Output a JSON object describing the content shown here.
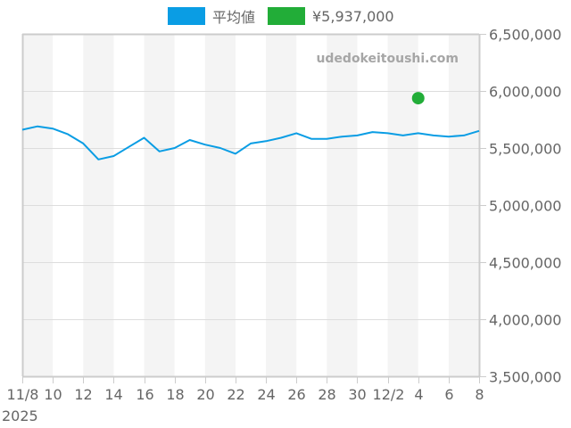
{
  "legend": {
    "series_label": "平均値",
    "series_color": "#0a9de4",
    "point_label": "¥5,937,000",
    "point_color": "#22ad38"
  },
  "watermark": "udedokeitoushi.com",
  "colors": {
    "line": "#0a9de4",
    "point": "#22ad38",
    "band": "#f4f4f4",
    "grid": "#dddddd",
    "axis": "#cccccc",
    "text": "#666666"
  },
  "chart_data": {
    "type": "line",
    "title": "",
    "xlabel": "",
    "ylabel": "",
    "ylim": [
      3500000,
      6500000
    ],
    "grid": true,
    "legend_position": "top",
    "y_ticks": [
      "6,500,000",
      "6,000,000",
      "5,500,000",
      "5,000,000",
      "4,500,000",
      "4,000,000",
      "3,500,000"
    ],
    "x_ticks": [
      "11/8",
      "10",
      "12",
      "14",
      "16",
      "18",
      "20",
      "22",
      "24",
      "26",
      "28",
      "30",
      "12/2",
      "4",
      "6",
      "8"
    ],
    "x_tick_year": "2025",
    "x": [
      "2025-11-08",
      "2025-11-09",
      "2025-11-10",
      "2025-11-11",
      "2025-11-12",
      "2025-11-13",
      "2025-11-14",
      "2025-11-15",
      "2025-11-16",
      "2025-11-17",
      "2025-11-18",
      "2025-11-19",
      "2025-11-20",
      "2025-11-21",
      "2025-11-22",
      "2025-11-23",
      "2025-11-24",
      "2025-11-25",
      "2025-11-26",
      "2025-11-27",
      "2025-11-28",
      "2025-11-29",
      "2025-11-30",
      "2025-12-01",
      "2025-12-02",
      "2025-12-03",
      "2025-12-04",
      "2025-12-05",
      "2025-12-06",
      "2025-12-07",
      "2025-12-08"
    ],
    "series": [
      {
        "name": "平均値",
        "color": "#0a9de4",
        "values": [
          5660000,
          5690000,
          5670000,
          5620000,
          5540000,
          5400000,
          5430000,
          5510000,
          5590000,
          5470000,
          5500000,
          5570000,
          5530000,
          5500000,
          5450000,
          5540000,
          5560000,
          5590000,
          5630000,
          5580000,
          5580000,
          5600000,
          5610000,
          5640000,
          5630000,
          5610000,
          5630000,
          5610000,
          5600000,
          5610000,
          5650000
        ]
      },
      {
        "name": "¥5,937,000",
        "color": "#22ad38",
        "type": "scatter",
        "points": [
          {
            "x": "2025-12-04",
            "y": 5937000
          }
        ]
      }
    ]
  }
}
